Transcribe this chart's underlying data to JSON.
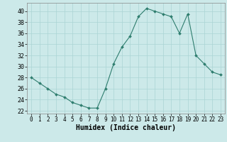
{
  "x": [
    0,
    1,
    2,
    3,
    4,
    5,
    6,
    7,
    8,
    9,
    10,
    11,
    12,
    13,
    14,
    15,
    16,
    17,
    18,
    19,
    20,
    21,
    22,
    23
  ],
  "y": [
    28,
    27,
    26.0,
    25.0,
    24.5,
    23.5,
    23.0,
    22.5,
    22.5,
    26.0,
    30.5,
    33.5,
    35.5,
    39.0,
    40.5,
    40.0,
    39.5,
    39.0,
    36.0,
    39.5,
    32.0,
    30.5,
    29.0,
    28.5
  ],
  "xlim": [
    -0.5,
    23.5
  ],
  "ylim": [
    21.5,
    41.5
  ],
  "yticks": [
    22,
    24,
    26,
    28,
    30,
    32,
    34,
    36,
    38,
    40
  ],
  "xticks": [
    0,
    1,
    2,
    3,
    4,
    5,
    6,
    7,
    8,
    9,
    10,
    11,
    12,
    13,
    14,
    15,
    16,
    17,
    18,
    19,
    20,
    21,
    22,
    23
  ],
  "xlabel": "Humidex (Indice chaleur)",
  "line_color": "#2e7d6e",
  "marker_color": "#2e7d6e",
  "bg_color": "#cce9e9",
  "grid_color": "#aad4d4",
  "spine_color": "#888888"
}
